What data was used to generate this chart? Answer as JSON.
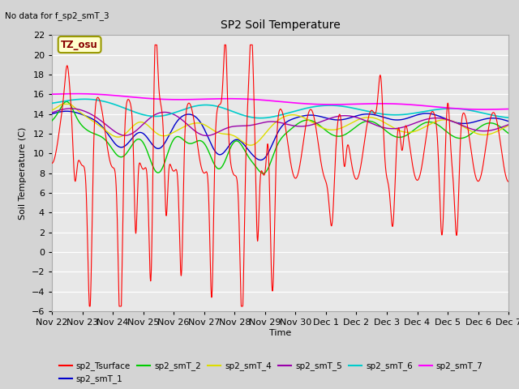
{
  "title": "SP2 Soil Temperature",
  "subtitle": "No data for f_sp2_smT_3",
  "xlabel": "Time",
  "ylabel": "Soil Temperature (C)",
  "xlim": [
    0,
    15
  ],
  "ylim": [
    -6,
    22
  ],
  "yticks": [
    -6,
    -4,
    -2,
    0,
    2,
    4,
    6,
    8,
    10,
    12,
    14,
    16,
    18,
    20,
    22
  ],
  "xtick_labels": [
    "Nov 22",
    "Nov 23",
    "Nov 24",
    "Nov 25",
    "Nov 26",
    "Nov 27",
    "Nov 28",
    "Nov 29",
    "Nov 30",
    "Dec 1",
    "Dec 2",
    "Dec 3",
    "Dec 4",
    "Dec 5",
    "Dec 6",
    "Dec 7"
  ],
  "xtick_positions": [
    0,
    1,
    2,
    3,
    4,
    5,
    6,
    7,
    8,
    9,
    10,
    11,
    12,
    13,
    14,
    15
  ],
  "fig_bg": "#d4d4d4",
  "plot_bg": "#e8e8e8",
  "grid_color": "#ffffff",
  "annotation_box_facecolor": "#ffffcc",
  "annotation_box_edgecolor": "#999900",
  "annotation_text": "TZ_osu",
  "annotation_text_color": "#880000",
  "col_tsurface": "#ff0000",
  "col_smt1": "#0000cc",
  "col_smt2": "#00cc00",
  "col_smt4": "#dddd00",
  "col_smt5": "#9900aa",
  "col_smt6": "#00cccc",
  "col_smt7": "#ff00ff",
  "legend_entries": [
    {
      "label": "sp2_Tsurface",
      "color": "#ff0000"
    },
    {
      "label": "sp2_smT_1",
      "color": "#0000cc"
    },
    {
      "label": "sp2_smT_2",
      "color": "#00cc00"
    },
    {
      "label": "sp2_smT_4",
      "color": "#dddd00"
    },
    {
      "label": "sp2_smT_5",
      "color": "#9900aa"
    },
    {
      "label": "sp2_smT_6",
      "color": "#00cccc"
    },
    {
      "label": "sp2_smT_7",
      "color": "#ff00ff"
    }
  ]
}
